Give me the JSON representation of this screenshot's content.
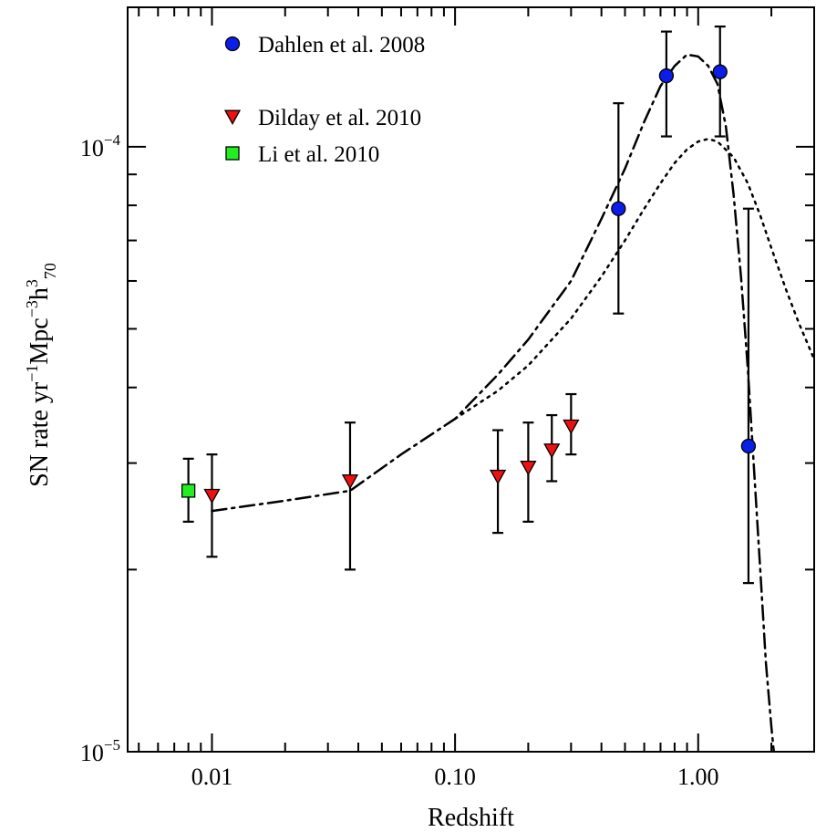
{
  "chart_data": {
    "type": "scatter",
    "xlabel": "Redshift",
    "ylabel": {
      "parts": [
        {
          "text": "SN rate yr",
          "shift": "none"
        },
        {
          "text": "−1",
          "shift": "super"
        },
        {
          "text": "Mpc",
          "shift": "none"
        },
        {
          "text": "−3",
          "shift": "super"
        },
        {
          "text": "h",
          "shift": "none"
        },
        {
          "text": "3",
          "shift": "super"
        },
        {
          "text": "70",
          "shift": "sub"
        }
      ]
    },
    "x_scale": "log",
    "y_scale": "log",
    "xlim": [
      0.0045,
      3.0
    ],
    "ylim": [
      1e-05,
      0.00017
    ],
    "x_ticks": [
      {
        "value": 0.01,
        "label": "0.01"
      },
      {
        "value": 0.1,
        "label": "0.10"
      },
      {
        "value": 1.0,
        "label": "1.00"
      }
    ],
    "y_ticks": [
      {
        "value": 1e-05,
        "base": "10",
        "exp": "−5"
      },
      {
        "value": 0.0001,
        "base": "10",
        "exp": "−4"
      }
    ],
    "grid": false,
    "legend_position": "top-left",
    "series": [
      {
        "name": "Dahlen et al. 2008",
        "marker": "circle",
        "color": "#0a1ee8",
        "points": [
          {
            "x": 0.47,
            "y": 7.9e-05,
            "ylo": 5.3e-05,
            "yhi": 0.000118
          },
          {
            "x": 0.74,
            "y": 0.000131,
            "ylo": 0.000104,
            "yhi": 0.000155
          },
          {
            "x": 1.23,
            "y": 0.000133,
            "ylo": 0.000104,
            "yhi": 0.000158
          },
          {
            "x": 1.61,
            "y": 3.2e-05,
            "ylo": 1.9e-05,
            "yhi": 7.9e-05
          }
        ]
      },
      {
        "name": "Dilday et al. 2010",
        "marker": "triangle-down",
        "color": "#ee1111",
        "points": [
          {
            "x": 0.01,
            "y": 2.65e-05,
            "ylo": 2.1e-05,
            "yhi": 3.1e-05
          },
          {
            "x": 0.037,
            "y": 2.8e-05,
            "ylo": 2e-05,
            "yhi": 3.5e-05
          },
          {
            "x": 0.15,
            "y": 2.85e-05,
            "ylo": 2.3e-05,
            "yhi": 3.4e-05
          },
          {
            "x": 0.2,
            "y": 2.95e-05,
            "ylo": 2.4e-05,
            "yhi": 3.5e-05
          },
          {
            "x": 0.25,
            "y": 3.15e-05,
            "ylo": 2.8e-05,
            "yhi": 3.6e-05
          },
          {
            "x": 0.3,
            "y": 3.45e-05,
            "ylo": 3.1e-05,
            "yhi": 3.9e-05
          }
        ]
      },
      {
        "name": "Li et al. 2010",
        "marker": "square",
        "color": "#22ee22",
        "points": [
          {
            "x": 0.008,
            "y": 2.7e-05,
            "ylo": 2.4e-05,
            "yhi": 3.05e-05
          }
        ]
      }
    ],
    "curves": [
      {
        "style": "dash-dot",
        "points": [
          [
            0.01,
            2.5e-05
          ],
          [
            0.02,
            2.6e-05
          ],
          [
            0.037,
            2.7e-05
          ],
          [
            0.06,
            3.1e-05
          ],
          [
            0.1,
            3.55e-05
          ],
          [
            0.15,
            4.2e-05
          ],
          [
            0.2,
            4.8e-05
          ],
          [
            0.3,
            6e-05
          ],
          [
            0.4,
            7.6e-05
          ],
          [
            0.5,
            9.2e-05
          ],
          [
            0.6,
            0.00011
          ],
          [
            0.7,
            0.000126
          ],
          [
            0.8,
            0.000136
          ],
          [
            0.9,
            0.000142
          ],
          [
            1.0,
            0.000141
          ],
          [
            1.1,
            0.000136
          ],
          [
            1.2,
            0.000127
          ],
          [
            1.3,
            0.000108
          ],
          [
            1.4,
            8.3e-05
          ],
          [
            1.5,
            6.1e-05
          ],
          [
            1.6,
            4.3e-05
          ],
          [
            1.7,
            2.9e-05
          ],
          [
            1.8,
            2e-05
          ],
          [
            1.9,
            1.4e-05
          ],
          [
            2.0,
            1.1e-05
          ],
          [
            2.1,
            9e-06
          ]
        ]
      },
      {
        "style": "dotted",
        "points": [
          [
            0.1,
            3.55e-05
          ],
          [
            0.15,
            3.95e-05
          ],
          [
            0.2,
            4.35e-05
          ],
          [
            0.3,
            5.2e-05
          ],
          [
            0.4,
            6.1e-05
          ],
          [
            0.5,
            7e-05
          ],
          [
            0.6,
            7.9e-05
          ],
          [
            0.7,
            8.7e-05
          ],
          [
            0.8,
            9.4e-05
          ],
          [
            0.9,
            9.9e-05
          ],
          [
            1.0,
            0.000102
          ],
          [
            1.1,
            0.000103
          ],
          [
            1.2,
            0.000102
          ],
          [
            1.4,
            9.6e-05
          ],
          [
            1.6,
            8.7e-05
          ],
          [
            1.8,
            7.7e-05
          ],
          [
            2.0,
            6.8e-05
          ],
          [
            2.3,
            5.8e-05
          ],
          [
            2.6,
            5.1e-05
          ],
          [
            2.9,
            4.6e-05
          ],
          [
            3.0,
            4.45e-05
          ]
        ]
      }
    ]
  }
}
